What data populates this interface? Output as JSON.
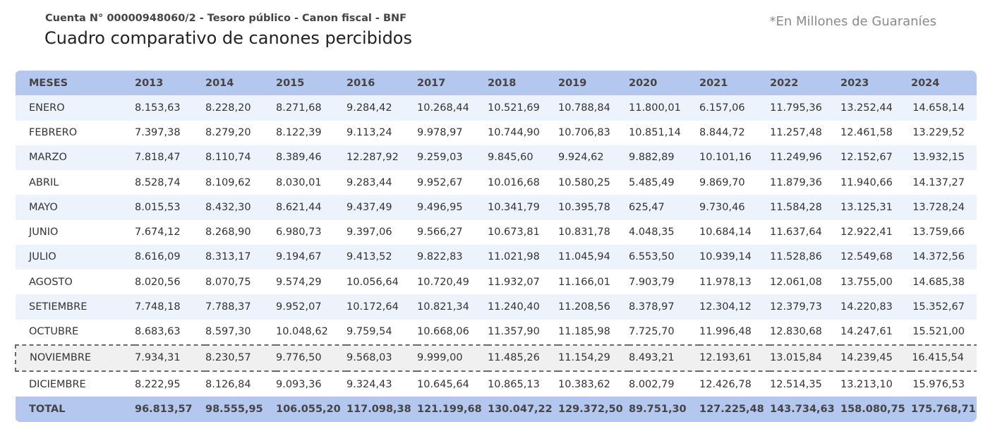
{
  "header": {
    "subtitle": "Cuenta N° 00000948060/2 - Tesoro público - Canon fiscal - BNF",
    "title": "Cuadro comparativo de canones percibidos",
    "unit_note": "*En Millones de Guaraníes"
  },
  "table": {
    "columns": [
      "MESES",
      "2013",
      "2014",
      "2015",
      "2016",
      "2017",
      "2018",
      "2019",
      "2020",
      "2021",
      "2022",
      "2023",
      "2024"
    ],
    "rows": [
      [
        "ENERO",
        "8.153,63",
        "8.228,20",
        "8.271,68",
        "9.284,42",
        "10.268,44",
        "10.521,69",
        "10.788,84",
        "11.800,01",
        "6.157,06",
        "11.795,36",
        "13.252,44",
        "14.658,14"
      ],
      [
        "FEBRERO",
        "7.397,38",
        "8.279,20",
        "8.122,39",
        "9.113,24",
        "9.978,97",
        "10.744,90",
        "10.706,83",
        "10.851,14",
        "8.844,72",
        "11.257,48",
        "12.461,58",
        "13.229,52"
      ],
      [
        "MARZO",
        "7.818,47",
        "8.110,74",
        "8.389,46",
        "12.287,92",
        "9.259,03",
        "9.845,60",
        "9.924,62",
        "9.882,89",
        "10.101,16",
        "11.249,96",
        "12.152,67",
        "13.932,15"
      ],
      [
        "ABRIL",
        "8.528,74",
        "8.109,62",
        "8.030,01",
        "9.283,44",
        "9.952,67",
        "10.016,68",
        "10.580,25",
        "5.485,49",
        "9.869,70",
        "11.879,36",
        "11.940,66",
        "14.137,27"
      ],
      [
        "MAYO",
        "8.015,53",
        "8.432,30",
        "8.621,44",
        "9.437,49",
        "9.496,95",
        "10.341,79",
        "10.395,78",
        "625,47",
        "9.730,46",
        "11.584,28",
        "13.125,31",
        "13.728,24"
      ],
      [
        "JUNIO",
        "7.674,12",
        "8.268,90",
        "6.980,73",
        "9.397,06",
        "9.566,27",
        "10.673,81",
        "10.831,78",
        "4.048,35",
        "10.684,14",
        "11.637,64",
        "12.922,41",
        "13.759,66"
      ],
      [
        "JULIO",
        "8.616,09",
        "8.313,17",
        "9.194,67",
        "9.413,52",
        "9.822,83",
        "11.021,98",
        "11.045,94",
        "6.553,50",
        "10.939,14",
        "11.528,86",
        "12.549,68",
        "14.372,56"
      ],
      [
        "AGOSTO",
        "8.020,56",
        "8.070,75",
        "9.574,29",
        "10.056,64",
        "10.720,49",
        "11.932,07",
        "11.166,01",
        "7.903,79",
        "11.978,13",
        "12.061,08",
        "13.755,00",
        "14.685,38"
      ],
      [
        "SETIEMBRE",
        "7.748,18",
        "7.788,37",
        "9.952,07",
        "10.172,64",
        "10.821,34",
        "11.240,40",
        "11.208,56",
        "8.378,97",
        "12.304,12",
        "12.379,73",
        "14.220,83",
        "15.352,67"
      ],
      [
        "OCTUBRE",
        "8.683,63",
        "8.597,30",
        "10.048,62",
        "9.759,54",
        "10.668,06",
        "11.357,90",
        "11.185,98",
        "7.725,70",
        "11.996,48",
        "12.830,68",
        "14.247,61",
        "15.521,00"
      ],
      [
        "NOVIEMBRE",
        "7.934,31",
        "8.230,57",
        "9.776,50",
        "9.568,03",
        "9.999,00",
        "11.485,26",
        "11.154,29",
        "8.493,21",
        "12.193,61",
        "13.015,84",
        "14.239,45",
        "16.415,54"
      ],
      [
        "DICIEMBRE",
        "8.222,95",
        "8.126,84",
        "9.093,36",
        "9.324,43",
        "10.645,64",
        "10.865,13",
        "10.383,62",
        "8.002,79",
        "12.426,78",
        "12.514,35",
        "13.213,10",
        "15.976,53"
      ]
    ],
    "highlighted_row": "NOVIEMBRE",
    "totals": [
      "TOTAL",
      "96.813,57",
      "98.555,95",
      "106.055,20",
      "117.098,38",
      "121.199,68",
      "130.047,22",
      "129.372,50",
      "89.751,30",
      "127.225,48",
      "143.734,63",
      "158.080,75",
      "175.768,71"
    ]
  },
  "colors": {
    "header_bg": "#b4c7ef",
    "row_alt_bg": "#edf3fc",
    "highlight_bg": "#f0f0f0"
  }
}
